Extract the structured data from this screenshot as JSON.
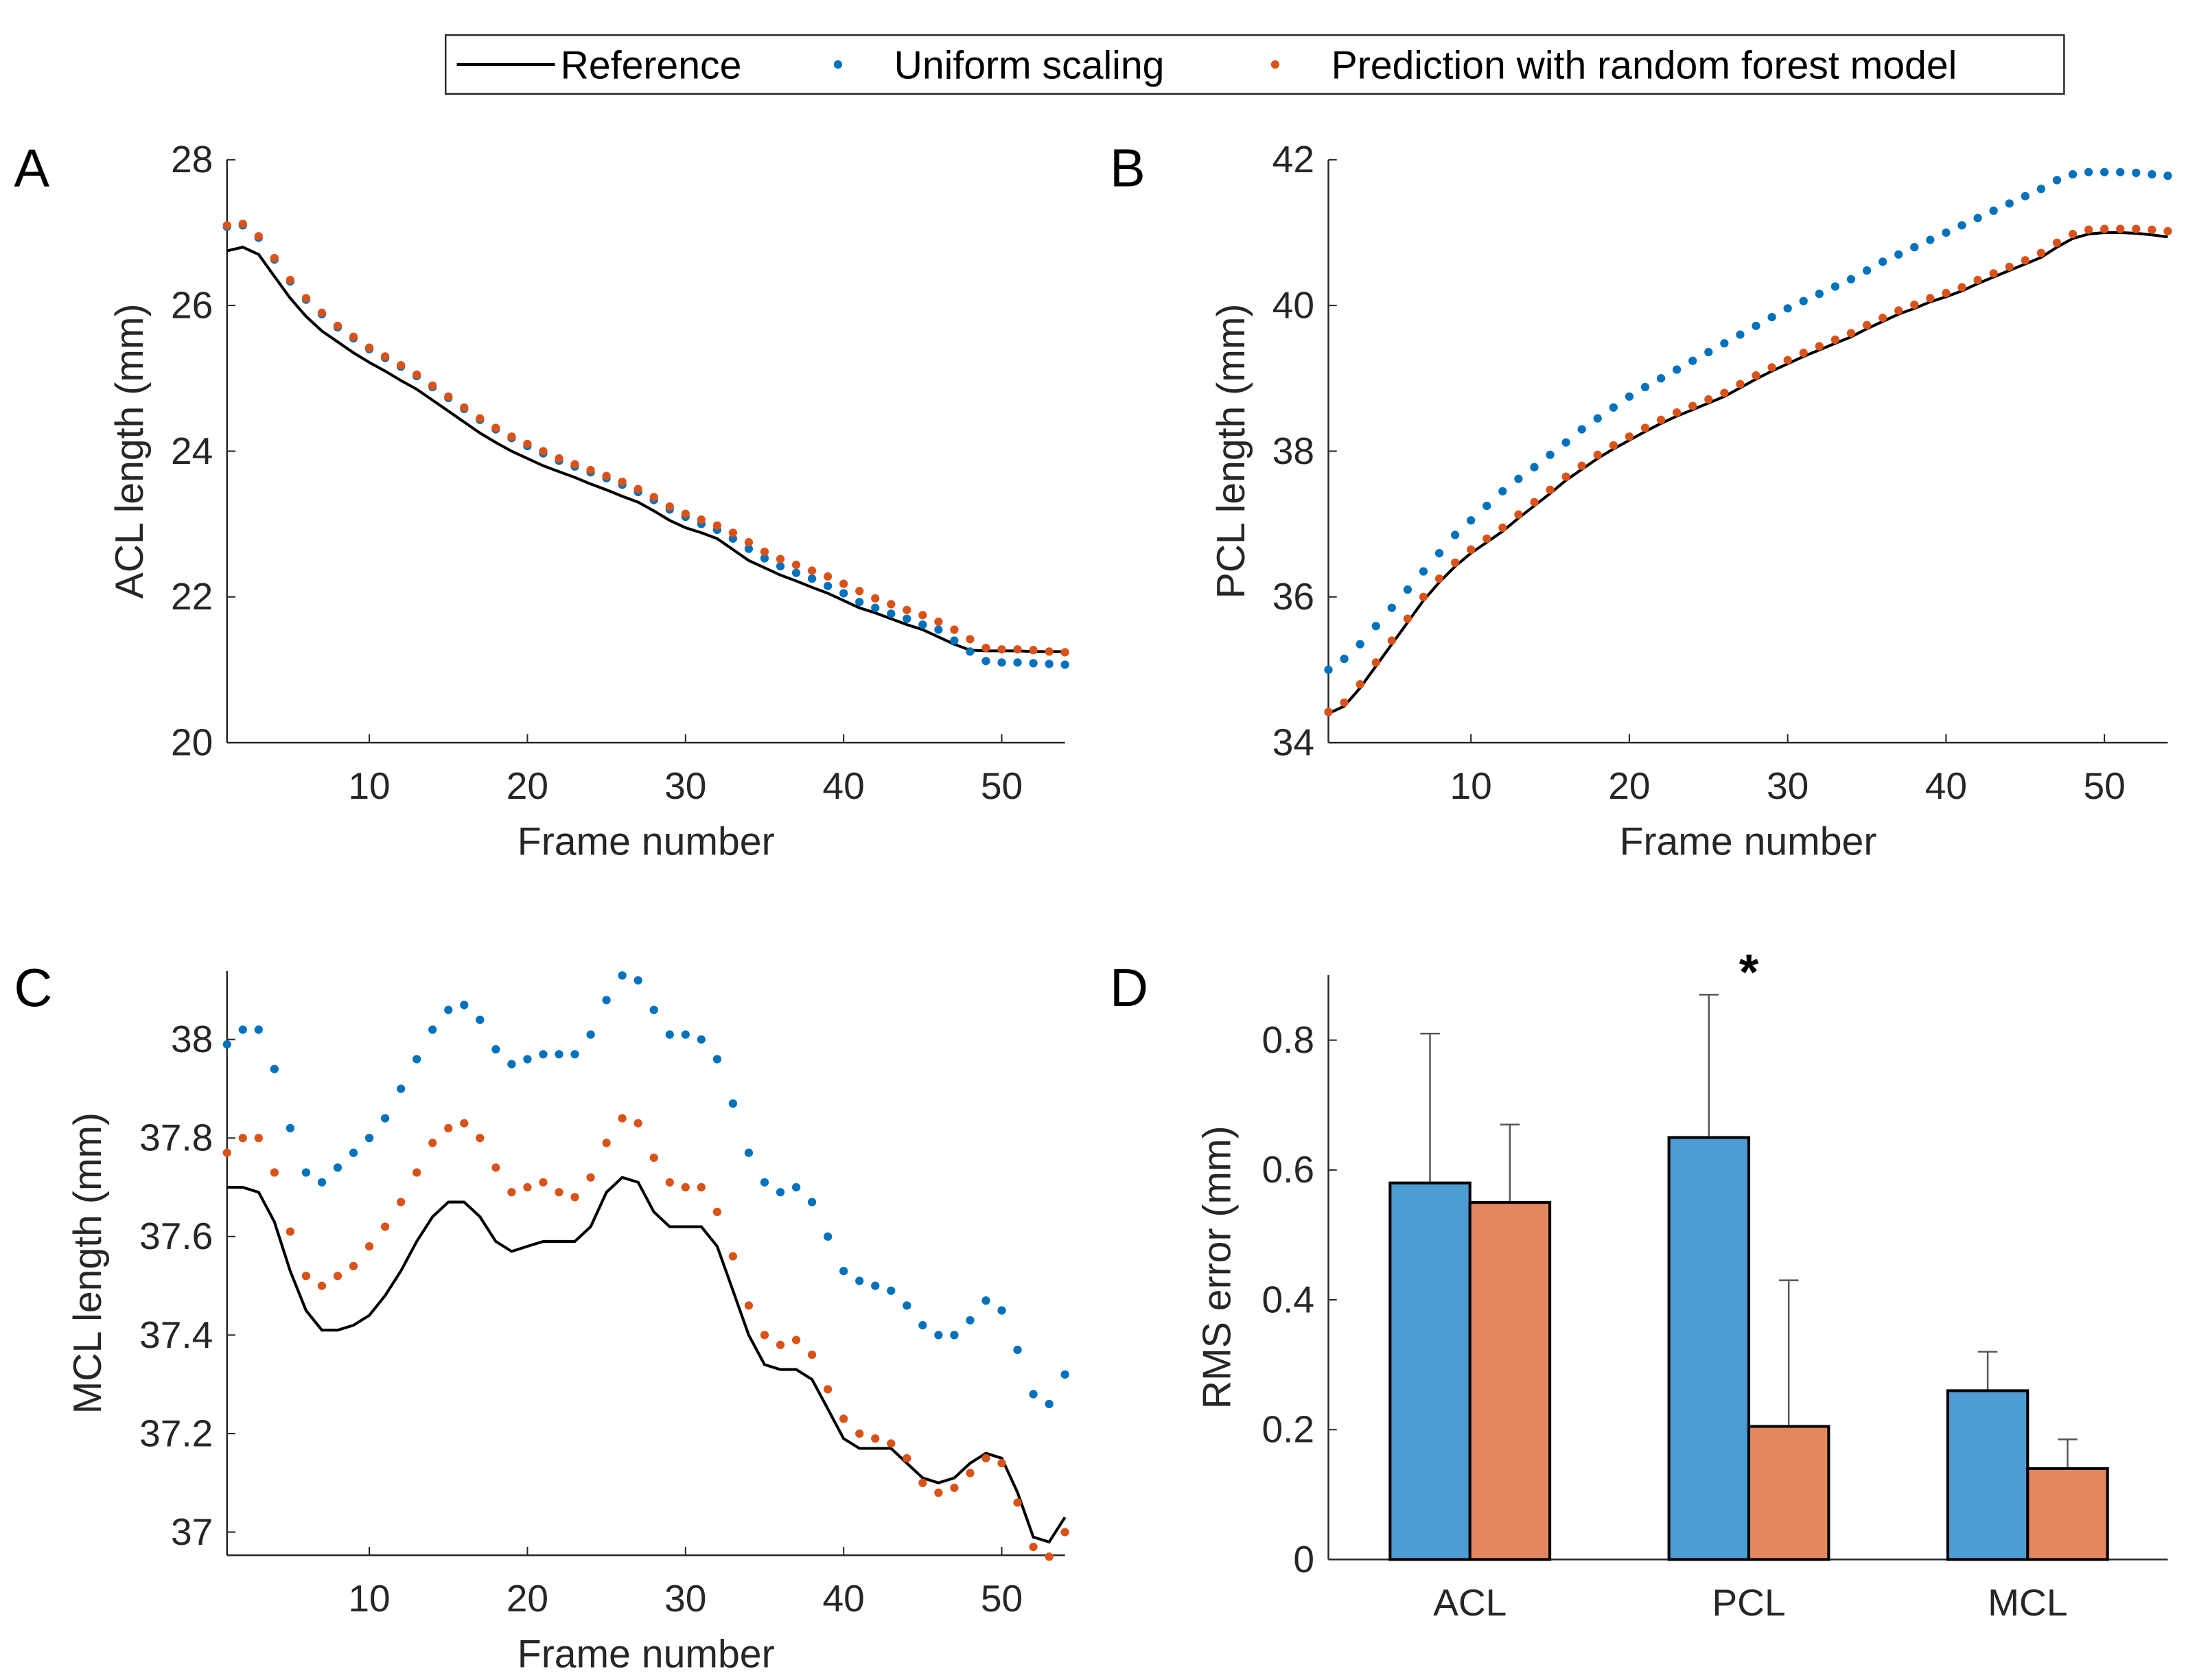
{
  "legend": {
    "reference": "Reference",
    "uniform": "Uniform scaling",
    "prediction": "Prediction with random forest model"
  },
  "colors": {
    "reference": "#000000",
    "uniform": "#0072BD",
    "prediction": "#D95319",
    "bar_uniform": "#4D9CD4",
    "bar_prediction": "#E4875E"
  },
  "chart_data": [
    {
      "panel": "A",
      "type": "line",
      "xlabel": "Frame number",
      "ylabel": "ACL length (mm)",
      "xlim": [
        1,
        54
      ],
      "ylim": [
        20,
        28
      ],
      "xticks": [
        10,
        20,
        30,
        40,
        50
      ],
      "yticks": [
        20,
        22,
        24,
        26,
        28
      ],
      "series": [
        {
          "name": "Reference",
          "style": "line",
          "values": [
            26.75,
            26.8,
            26.7,
            26.4,
            26.1,
            25.85,
            25.65,
            25.5,
            25.35,
            25.22,
            25.1,
            24.97,
            24.85,
            24.7,
            24.55,
            24.4,
            24.25,
            24.12,
            24.0,
            23.9,
            23.8,
            23.72,
            23.64,
            23.55,
            23.47,
            23.38,
            23.3,
            23.18,
            23.05,
            22.95,
            22.88,
            22.8,
            22.65,
            22.5,
            22.4,
            22.3,
            22.22,
            22.13,
            22.05,
            21.95,
            21.85,
            21.78,
            21.7,
            21.62,
            21.55,
            21.45,
            21.35,
            21.27,
            21.26,
            21.26,
            21.26,
            21.25,
            21.25,
            21.25
          ]
        },
        {
          "name": "Uniform scaling",
          "style": "dots",
          "values": [
            27.08,
            27.1,
            26.93,
            26.63,
            26.33,
            26.08,
            25.88,
            25.7,
            25.55,
            25.4,
            25.28,
            25.16,
            25.03,
            24.88,
            24.73,
            24.58,
            24.43,
            24.3,
            24.18,
            24.07,
            23.97,
            23.87,
            23.79,
            23.71,
            23.63,
            23.54,
            23.44,
            23.33,
            23.2,
            23.1,
            23.0,
            22.92,
            22.8,
            22.66,
            22.53,
            22.42,
            22.33,
            22.25,
            22.15,
            22.05,
            21.93,
            21.85,
            21.77,
            21.7,
            21.62,
            21.55,
            21.4,
            21.25,
            21.12,
            21.1,
            21.1,
            21.09,
            21.08,
            21.07
          ]
        },
        {
          "name": "Prediction with random forest model",
          "style": "dots",
          "values": [
            27.1,
            27.12,
            26.95,
            26.65,
            26.35,
            26.1,
            25.9,
            25.72,
            25.57,
            25.42,
            25.3,
            25.18,
            25.05,
            24.9,
            24.75,
            24.6,
            24.45,
            24.32,
            24.2,
            24.1,
            24.0,
            23.9,
            23.82,
            23.74,
            23.66,
            23.58,
            23.48,
            23.37,
            23.24,
            23.14,
            23.06,
            22.98,
            22.88,
            22.75,
            22.62,
            22.52,
            22.44,
            22.36,
            22.28,
            22.18,
            22.08,
            21.98,
            21.9,
            21.82,
            21.75,
            21.66,
            21.55,
            21.42,
            21.3,
            21.28,
            21.28,
            21.27,
            21.25,
            21.24
          ]
        }
      ]
    },
    {
      "panel": "B",
      "type": "line",
      "xlabel": "Frame number",
      "ylabel": "PCL length (mm)",
      "xlim": [
        1,
        54
      ],
      "ylim": [
        34,
        42
      ],
      "xticks": [
        10,
        20,
        30,
        40,
        50
      ],
      "yticks": [
        34,
        36,
        38,
        40,
        42
      ],
      "series": [
        {
          "name": "Reference",
          "style": "line",
          "values": [
            34.4,
            34.5,
            34.75,
            35.05,
            35.35,
            35.65,
            35.95,
            36.2,
            36.42,
            36.6,
            36.75,
            36.9,
            37.08,
            37.25,
            37.42,
            37.6,
            37.75,
            37.9,
            38.03,
            38.15,
            38.27,
            38.38,
            38.48,
            38.57,
            38.66,
            38.75,
            38.87,
            38.99,
            39.1,
            39.2,
            39.3,
            39.39,
            39.48,
            39.57,
            39.68,
            39.78,
            39.88,
            39.96,
            40.05,
            40.12,
            40.2,
            40.3,
            40.39,
            40.48,
            40.57,
            40.66,
            40.8,
            40.92,
            40.98,
            41.0,
            41.0,
            40.99,
            40.97,
            40.94
          ]
        },
        {
          "name": "Uniform scaling",
          "style": "dots",
          "values": [
            35.0,
            35.15,
            35.35,
            35.6,
            35.85,
            36.1,
            36.35,
            36.6,
            36.85,
            37.05,
            37.25,
            37.45,
            37.62,
            37.78,
            37.95,
            38.12,
            38.3,
            38.45,
            38.6,
            38.75,
            38.88,
            39.0,
            39.12,
            39.24,
            39.36,
            39.48,
            39.6,
            39.72,
            39.84,
            39.96,
            40.06,
            40.16,
            40.26,
            40.36,
            40.48,
            40.6,
            40.7,
            40.8,
            40.9,
            41.0,
            41.1,
            41.2,
            41.3,
            41.4,
            41.5,
            41.6,
            41.72,
            41.8,
            41.83,
            41.83,
            41.83,
            41.82,
            41.8,
            41.78
          ]
        },
        {
          "name": "Prediction with random forest model",
          "style": "dots",
          "values": [
            34.42,
            34.55,
            34.8,
            35.1,
            35.4,
            35.7,
            36.0,
            36.25,
            36.47,
            36.65,
            36.8,
            36.95,
            37.13,
            37.3,
            37.47,
            37.65,
            37.8,
            37.95,
            38.08,
            38.2,
            38.32,
            38.43,
            38.53,
            38.62,
            38.71,
            38.8,
            38.92,
            39.04,
            39.15,
            39.25,
            39.35,
            39.44,
            39.53,
            39.62,
            39.73,
            39.83,
            39.93,
            40.01,
            40.1,
            40.17,
            40.25,
            40.35,
            40.44,
            40.53,
            40.62,
            40.72,
            40.86,
            40.98,
            41.04,
            41.05,
            41.05,
            41.05,
            41.04,
            41.02
          ]
        }
      ]
    },
    {
      "panel": "C",
      "type": "line",
      "xlabel": "Frame number",
      "ylabel": "MCL length (mm)",
      "xlim": [
        1,
        54
      ],
      "ylim": [
        36.953,
        38.139
      ],
      "xticks": [
        10,
        20,
        30,
        40,
        50
      ],
      "yticks": [
        37,
        37.2,
        37.4,
        37.6,
        37.8,
        38
      ],
      "series": [
        {
          "name": "Reference",
          "style": "line",
          "values": [
            37.7,
            37.7,
            37.69,
            37.63,
            37.53,
            37.45,
            37.41,
            37.41,
            37.42,
            37.44,
            37.48,
            37.53,
            37.59,
            37.64,
            37.67,
            37.67,
            37.64,
            37.59,
            37.57,
            37.58,
            37.59,
            37.59,
            37.59,
            37.62,
            37.69,
            37.72,
            37.71,
            37.65,
            37.62,
            37.62,
            37.62,
            37.58,
            37.49,
            37.4,
            37.34,
            37.33,
            37.33,
            37.31,
            37.25,
            37.19,
            37.17,
            37.17,
            37.17,
            37.14,
            37.11,
            37.1,
            37.11,
            37.14,
            37.16,
            37.15,
            37.08,
            36.99,
            36.98,
            37.03
          ]
        },
        {
          "name": "Uniform scaling",
          "style": "dots",
          "values": [
            37.99,
            38.02,
            38.02,
            37.94,
            37.82,
            37.73,
            37.71,
            37.74,
            37.77,
            37.8,
            37.84,
            37.9,
            37.96,
            38.02,
            38.06,
            38.07,
            38.04,
            37.98,
            37.95,
            37.96,
            37.97,
            37.97,
            37.97,
            38.01,
            38.08,
            38.13,
            38.12,
            38.06,
            38.01,
            38.01,
            38.0,
            37.96,
            37.87,
            37.77,
            37.71,
            37.69,
            37.7,
            37.67,
            37.6,
            37.53,
            37.51,
            37.5,
            37.49,
            37.46,
            37.42,
            37.4,
            37.4,
            37.43,
            37.47,
            37.45,
            37.37,
            37.28,
            37.26,
            37.32
          ]
        },
        {
          "name": "Prediction with random forest model",
          "style": "dots",
          "values": [
            37.77,
            37.8,
            37.8,
            37.73,
            37.61,
            37.52,
            37.5,
            37.52,
            37.54,
            37.58,
            37.62,
            37.67,
            37.73,
            37.79,
            37.82,
            37.83,
            37.8,
            37.74,
            37.69,
            37.7,
            37.71,
            37.69,
            37.68,
            37.72,
            37.79,
            37.84,
            37.83,
            37.76,
            37.71,
            37.7,
            37.7,
            37.65,
            37.56,
            37.46,
            37.4,
            37.38,
            37.39,
            37.36,
            37.29,
            37.23,
            37.2,
            37.19,
            37.18,
            37.15,
            37.1,
            37.08,
            37.09,
            37.12,
            37.15,
            37.14,
            37.06,
            36.97,
            36.95,
            37.0
          ]
        }
      ]
    },
    {
      "panel": "D",
      "type": "bar",
      "xlabel": "",
      "ylabel": "RMS error (mm)",
      "ylim": [
        0,
        0.9
      ],
      "yticks": [
        0,
        0.2,
        0.4,
        0.6,
        0.8
      ],
      "categories": [
        "ACL",
        "PCL",
        "MCL"
      ],
      "series": [
        {
          "name": "Uniform scaling",
          "values": [
            0.58,
            0.65,
            0.26
          ],
          "errors": [
            0.23,
            0.22,
            0.06
          ]
        },
        {
          "name": "Prediction with random forest model",
          "values": [
            0.55,
            0.205,
            0.14
          ],
          "errors": [
            0.12,
            0.225,
            0.045
          ]
        }
      ],
      "annotations": [
        {
          "category": "PCL",
          "text": "*"
        }
      ]
    }
  ]
}
